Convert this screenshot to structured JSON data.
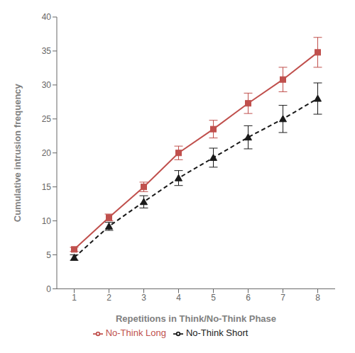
{
  "chart_data": {
    "type": "line",
    "x": [
      1,
      2,
      3,
      4,
      5,
      6,
      7,
      8
    ],
    "xlabel": "Repetitions in Think/No-Think Phase",
    "ylabel": "Cumulative intrusion frequency",
    "xlim": [
      0.5,
      8.5
    ],
    "ylim": [
      0,
      40
    ],
    "xticks": [
      1,
      2,
      3,
      4,
      5,
      6,
      7,
      8
    ],
    "yticks": [
      0,
      5,
      10,
      15,
      20,
      25,
      30,
      35,
      40
    ],
    "grid": false,
    "legend": "bottom",
    "series": [
      {
        "name": "No-Think Short",
        "color": "#1a1a1a",
        "values": [
          4.6,
          9.2,
          12.8,
          16.3,
          19.3,
          22.3,
          25.0,
          28.0
        ],
        "errors": [
          0.4,
          0.6,
          0.9,
          1.1,
          1.4,
          1.7,
          2.0,
          2.3
        ],
        "marker": "triangle",
        "line_style": "dashed"
      },
      {
        "name": "No-Think Long",
        "color": "#c0504d",
        "values": [
          5.8,
          10.5,
          15.0,
          20.0,
          23.5,
          27.3,
          30.8,
          34.8
        ],
        "errors": [
          0.3,
          0.5,
          0.7,
          1.0,
          1.3,
          1.5,
          1.8,
          2.2
        ],
        "marker": "square",
        "line_style": "solid"
      }
    ]
  }
}
